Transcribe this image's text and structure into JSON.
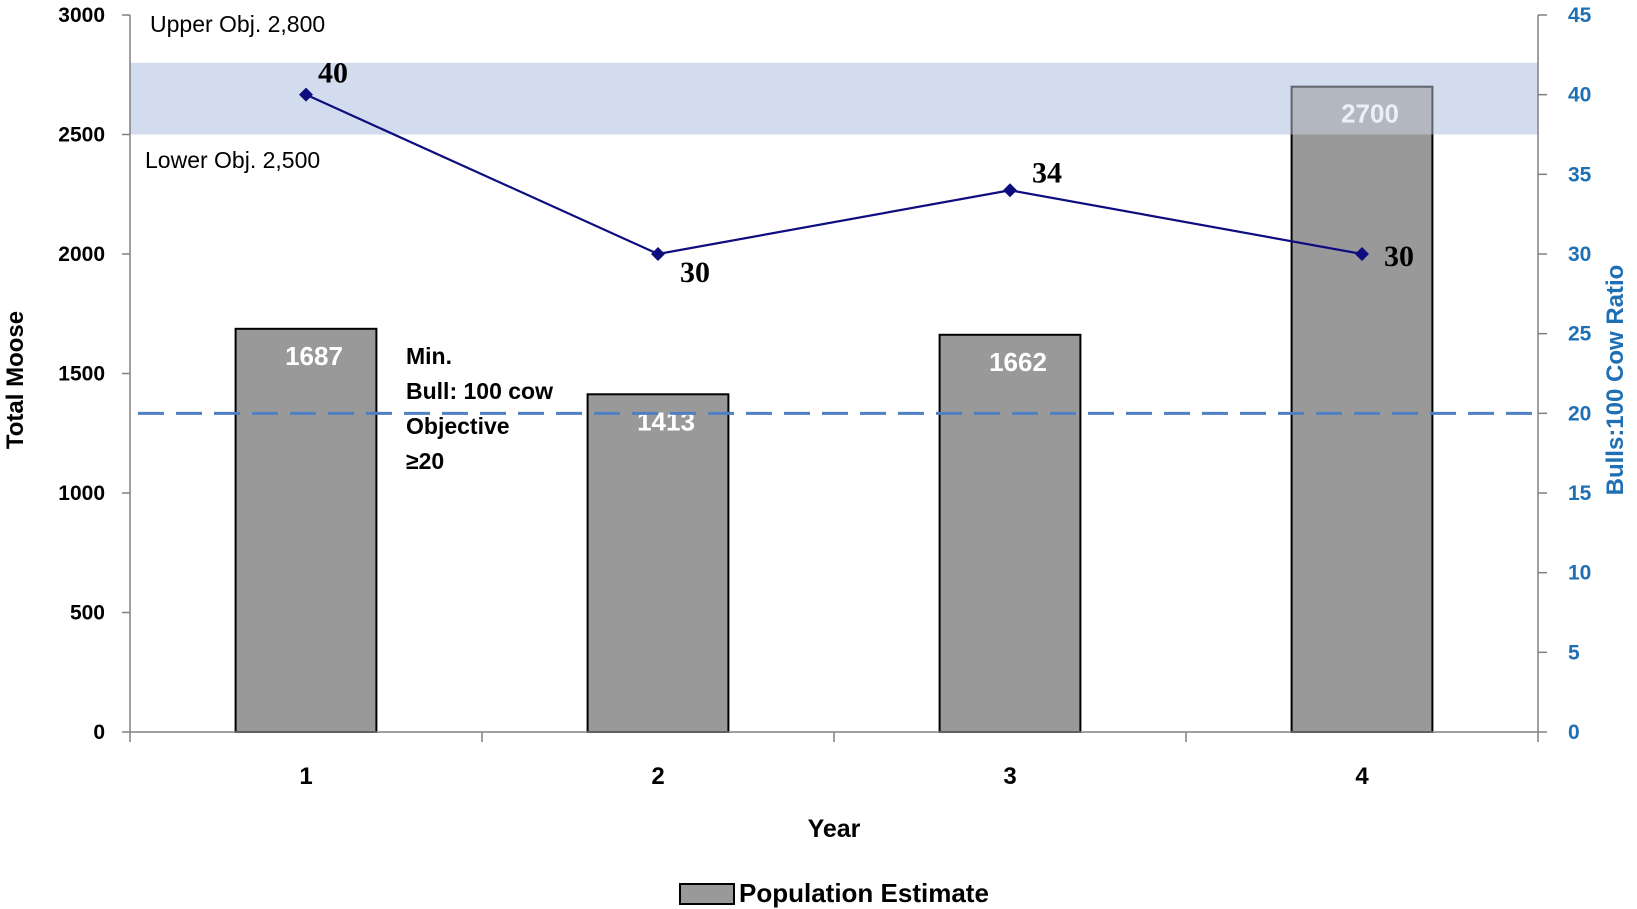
{
  "chart_data": {
    "type": "bar",
    "categories": [
      "1",
      "2",
      "3",
      "4"
    ],
    "series": [
      {
        "name": "Population Estimate",
        "type": "bar",
        "axis": "left",
        "values": [
          1687,
          1413,
          1662,
          2700
        ],
        "color": "#999999"
      },
      {
        "name": "",
        "type": "line",
        "axis": "right",
        "values": [
          40,
          30,
          34,
          30
        ],
        "color": "#0d0d80"
      }
    ],
    "xlabel": "Year",
    "ylabel": "Total Moose",
    "y2label": "Bulls:100 Cow Ratio",
    "ylim": [
      0,
      3000
    ],
    "y2lim": [
      0,
      45
    ],
    "yticks": [
      "0",
      "500",
      "1000",
      "1500",
      "2000",
      "2500",
      "3000"
    ],
    "y2ticks": [
      "0",
      "5",
      "10",
      "15",
      "20",
      "25",
      "30",
      "35",
      "40",
      "45"
    ],
    "objective_band": {
      "lower": 2500,
      "upper": 2800,
      "upper_label": "Upper Obj. 2,800",
      "lower_label": "Lower Obj. 2,500",
      "color": "#d2dcee"
    },
    "min_bull_objective": {
      "value": 20,
      "axis": "right",
      "label_lines": [
        "Min.",
        "Bull: 100 cow",
        "Objective",
        "≥20"
      ],
      "color": "#4f7fc0"
    },
    "legend": {
      "position": "bottom-center",
      "entries": [
        "Population Estimate"
      ]
    },
    "colors": {
      "bar": "#999999",
      "line": "#0d0d80",
      "right_axis": "#1f6fb5",
      "band": "#d2dcee",
      "dashed_line": "#4f7fc0"
    }
  }
}
